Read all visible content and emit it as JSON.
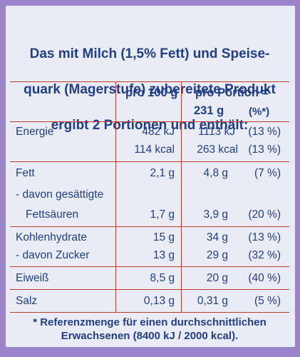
{
  "header": {
    "line1": "Das mit Milch (1,5% Fett) und Speise-",
    "line2": "quark (Magerstufe) zubereitete Produkt",
    "line3": "ergibt 2 Portionen und enthält:"
  },
  "columns": {
    "per100": "pro 100 g",
    "perPortion": "pro Portion =",
    "portionSize": "231 g",
    "percent": "(%*)"
  },
  "rows": {
    "energie": {
      "label": "Energie",
      "kj100": "482 kJ",
      "kjPort": "1113 kJ",
      "kjPct": "(13 %)",
      "kcal100": "114 kcal",
      "kcalPort": "263 kcal",
      "kcalPct": "(13 %)"
    },
    "fett": {
      "label": "Fett",
      "v100": "2,1 g",
      "vPort": "4,8 g",
      "pct": "(7 %)"
    },
    "gesaettigt": {
      "label1": "- davon gesättigte",
      "label2": "Fettsäuren",
      "v100": "1,7 g",
      "vPort": "3,9 g",
      "pct": "(20 %)"
    },
    "kohlenhydrate": {
      "label": "Kohlenhydrate",
      "v100": "15 g",
      "vPort": "34 g",
      "pct": "(13 %)"
    },
    "zucker": {
      "label": "- davon Zucker",
      "v100": "13 g",
      "vPort": "29 g",
      "pct": "(32 %)"
    },
    "eiweiss": {
      "label": "Eiweiß",
      "v100": "8,5 g",
      "vPort": "20 g",
      "pct": "(40 %)"
    },
    "salz": {
      "label": "Salz",
      "v100": "0,13 g",
      "vPort": "0,31 g",
      "pct": "(5 %)"
    }
  },
  "footnote": {
    "line1": "* Referenzmenge für einen durchschnittlichen",
    "line2": "Erwachsenen (8400 kJ / 2000 kcal)."
  },
  "colors": {
    "text": "#203f86",
    "rules": "#c0392b",
    "paper": "#e9ebf5",
    "frame": "#9b84c9"
  }
}
